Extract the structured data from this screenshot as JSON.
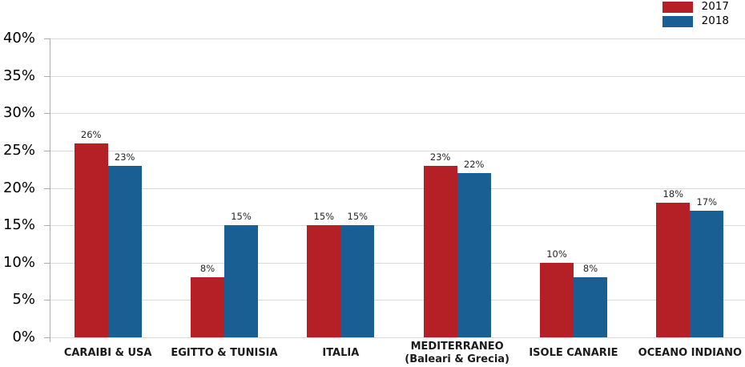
{
  "chart_data": {
    "type": "bar",
    "title": "",
    "xlabel": "",
    "ylabel": "",
    "categories": [
      "CARAIBI & USA",
      "EGITTO & TUNISIA",
      "ITALIA",
      "MEDITERRANEO\n(Baleari & Grecia)",
      "ISOLE CANARIE",
      "OCEANO INDIANO"
    ],
    "series": [
      {
        "name": "2017",
        "color": "#B42025",
        "values": [
          26,
          8,
          15,
          23,
          10,
          18
        ],
        "labels": [
          "26%",
          "8%",
          "15%",
          "23%",
          "10%",
          "18%"
        ]
      },
      {
        "name": "2018",
        "color": "#1A5F94",
        "values": [
          23,
          15,
          15,
          22,
          8,
          17
        ],
        "labels": [
          "23%",
          "15%",
          "15%",
          "22%",
          "8%",
          "17%"
        ]
      }
    ],
    "y_ticks": [
      "0%",
      "5%",
      "10%",
      "15%",
      "20%",
      "25%",
      "30%",
      "35%",
      "40%"
    ],
    "ylim": [
      0,
      40
    ],
    "y_step": 5,
    "grid": true,
    "value_labels_shown": true,
    "legend_position": "top-right"
  },
  "colors": {
    "background": "#FFFFFF",
    "gridline": "#D9D9D9",
    "axis": "#ABABAB",
    "tick_label": "#000000",
    "value_label": "#262626",
    "category_label": "#1A1A1A"
  }
}
